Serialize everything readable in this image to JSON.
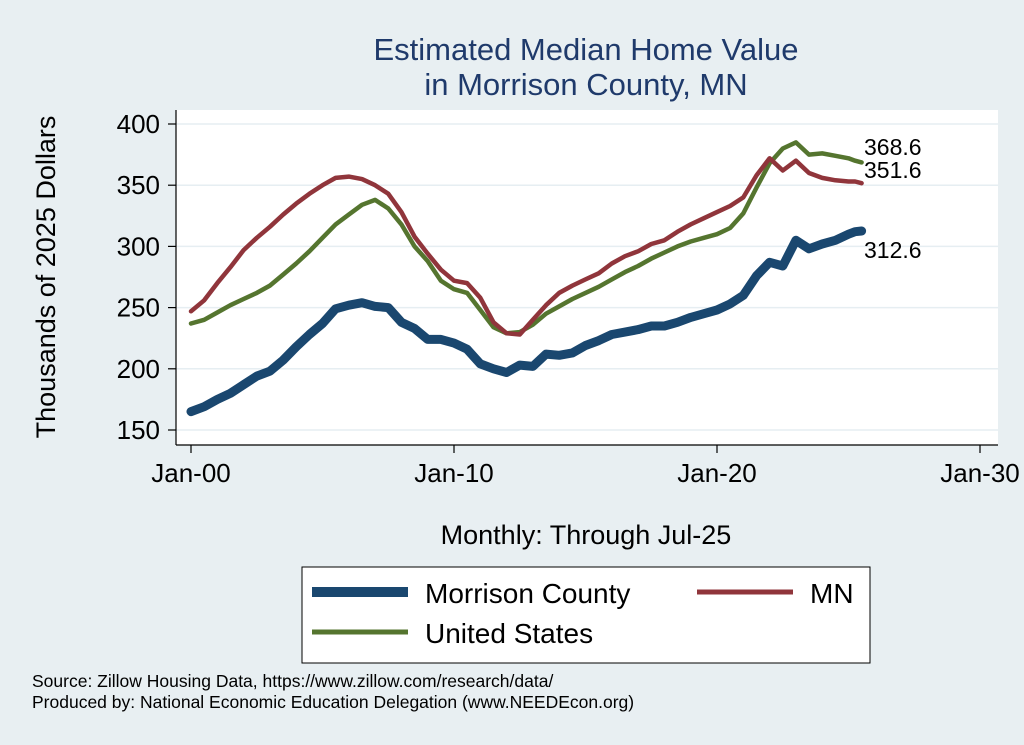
{
  "chart_data": {
    "type": "line",
    "title": [
      "Estimated Median Home Value",
      "in Morrison County, MN"
    ],
    "xlabel": "Monthly: Through Jul-25",
    "ylabel": "Thousands of 2025 Dollars",
    "xlim": [
      2000,
      2030
    ],
    "ylim": [
      150,
      400
    ],
    "x_ticks": [
      {
        "value": 2000,
        "label": "Jan-00"
      },
      {
        "value": 2010,
        "label": "Jan-10"
      },
      {
        "value": 2020,
        "label": "Jan-20"
      },
      {
        "value": 2030,
        "label": "Jan-30"
      }
    ],
    "y_ticks": [
      150,
      200,
      250,
      300,
      350,
      400
    ],
    "grid": "horizontal",
    "legend_position": "bottom",
    "end_labels": [
      "368.6",
      "351.6",
      "312.6"
    ],
    "series": [
      {
        "name": "Morrison County",
        "color": "#1a476f",
        "x": [
          2000.0,
          2000.5,
          2001.0,
          2001.5,
          2002.0,
          2002.5,
          2003.0,
          2003.5,
          2004.0,
          2004.5,
          2005.0,
          2005.5,
          2006.0,
          2006.5,
          2007.0,
          2007.5,
          2008.0,
          2008.5,
          2009.0,
          2009.5,
          2010.0,
          2010.5,
          2011.0,
          2011.5,
          2012.0,
          2012.5,
          2013.0,
          2013.5,
          2014.0,
          2014.5,
          2015.0,
          2015.5,
          2016.0,
          2016.5,
          2017.0,
          2017.5,
          2018.0,
          2018.5,
          2019.0,
          2019.5,
          2020.0,
          2020.5,
          2021.0,
          2021.5,
          2022.0,
          2022.5,
          2023.0,
          2023.5,
          2024.0,
          2024.5,
          2025.0,
          2025.25,
          2025.5
        ],
        "values": [
          165,
          169,
          175,
          180,
          187,
          194,
          198,
          207,
          218,
          228,
          237,
          249,
          252,
          254,
          251,
          250,
          238,
          233,
          224,
          224,
          221,
          216,
          204,
          200,
          197,
          203,
          202,
          212,
          211,
          213,
          219,
          223,
          228,
          230,
          232,
          235,
          235,
          238,
          242,
          245,
          248,
          253,
          260,
          276,
          287,
          284,
          305,
          298,
          302,
          305,
          310,
          312,
          312.6
        ]
      },
      {
        "name": "MN",
        "color": "#90353b",
        "x": [
          2000.0,
          2000.5,
          2001.0,
          2001.5,
          2002.0,
          2002.5,
          2003.0,
          2003.5,
          2004.0,
          2004.5,
          2005.0,
          2005.5,
          2006.0,
          2006.5,
          2007.0,
          2007.5,
          2008.0,
          2008.5,
          2009.0,
          2009.5,
          2010.0,
          2010.5,
          2011.0,
          2011.5,
          2012.0,
          2012.5,
          2013.0,
          2013.5,
          2014.0,
          2014.5,
          2015.0,
          2015.5,
          2016.0,
          2016.5,
          2017.0,
          2017.5,
          2018.0,
          2018.5,
          2019.0,
          2019.5,
          2020.0,
          2020.5,
          2021.0,
          2021.5,
          2022.0,
          2022.5,
          2023.0,
          2023.5,
          2024.0,
          2024.5,
          2025.0,
          2025.25,
          2025.5
        ],
        "values": [
          247,
          256,
          270,
          283,
          297,
          307,
          316,
          326,
          335,
          343,
          350,
          356,
          357,
          355,
          350,
          343,
          328,
          308,
          294,
          281,
          272,
          270,
          258,
          238,
          229,
          228,
          240,
          252,
          262,
          268,
          273,
          278,
          286,
          292,
          296,
          302,
          305,
          312,
          318,
          323,
          328,
          333,
          340,
          358,
          372,
          362,
          370,
          360,
          356,
          354,
          353,
          353,
          351.6
        ]
      },
      {
        "name": "United States",
        "color": "#55752f",
        "x": [
          2000.0,
          2000.5,
          2001.0,
          2001.5,
          2002.0,
          2002.5,
          2003.0,
          2003.5,
          2004.0,
          2004.5,
          2005.0,
          2005.5,
          2006.0,
          2006.5,
          2007.0,
          2007.5,
          2008.0,
          2008.5,
          2009.0,
          2009.5,
          2010.0,
          2010.5,
          2011.0,
          2011.5,
          2012.0,
          2012.5,
          2013.0,
          2013.5,
          2014.0,
          2014.5,
          2015.0,
          2015.5,
          2016.0,
          2016.5,
          2017.0,
          2017.5,
          2018.0,
          2018.5,
          2019.0,
          2019.5,
          2020.0,
          2020.5,
          2021.0,
          2021.5,
          2022.0,
          2022.5,
          2023.0,
          2023.5,
          2024.0,
          2024.5,
          2025.0,
          2025.25,
          2025.5
        ],
        "values": [
          237,
          240,
          246,
          252,
          257,
          262,
          268,
          277,
          286,
          296,
          307,
          318,
          326,
          334,
          338,
          331,
          318,
          300,
          288,
          272,
          265,
          262,
          248,
          234,
          229,
          230,
          236,
          245,
          251,
          257,
          262,
          267,
          273,
          279,
          284,
          290,
          295,
          300,
          304,
          307,
          310,
          315,
          327,
          348,
          368,
          380,
          385,
          375,
          376,
          374,
          372,
          370,
          368.6
        ]
      }
    ]
  },
  "notes": {
    "source": "Source: Zillow Housing Data, https://www.zillow.com/research/data/",
    "produced_by": "Produced by: National Economic Education Delegation (www.NEEDEcon.org)"
  }
}
